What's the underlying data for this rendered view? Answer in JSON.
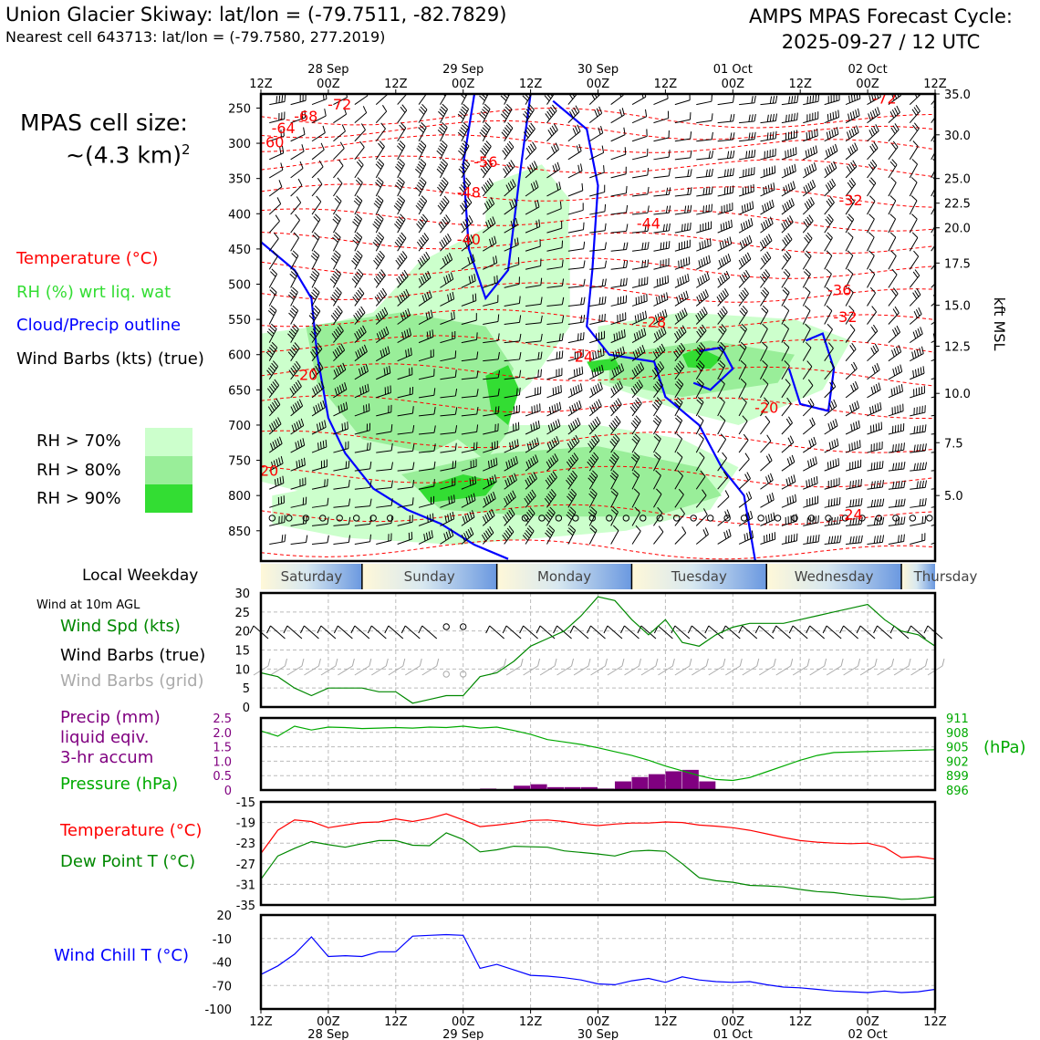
{
  "header": {
    "title_left": "Union Glacier Skiway: lat/lon = (-79.7511, -82.7829)",
    "subtitle_left": "Nearest cell 643713: lat/lon = (-79.7580, 277.2019)",
    "title_right_1": "AMPS MPAS Forecast Cycle:",
    "title_right_2": "2025-09-27 / 12 UTC"
  },
  "time_axis": {
    "ticks": [
      "12Z",
      "00Z",
      "12Z",
      "00Z",
      "12Z",
      "00Z",
      "12Z",
      "00Z",
      "12Z",
      "00Z",
      "12Z"
    ],
    "dates": [
      {
        "label": "28 Sep",
        "tick_index": 1
      },
      {
        "label": "29 Sep",
        "tick_index": 3
      },
      {
        "label": "30 Sep",
        "tick_index": 5
      },
      {
        "label": "01 Oct",
        "tick_index": 7
      },
      {
        "label": "02 Oct",
        "tick_index": 9
      }
    ],
    "hours_span": 120
  },
  "cross_section": {
    "cell_label_1": "MPAS cell size:",
    "cell_label_2": "~(4.3 km)",
    "cell_label_sup": "2",
    "legend": [
      {
        "label": "Temperature (°C)",
        "color": "#ff0000"
      },
      {
        "label": "RH (%) wrt liq. wat",
        "color": "#33dd33"
      },
      {
        "label": "Cloud/Precip outline",
        "color": "#0000ff"
      },
      {
        "label": "Wind Barbs (kts) (true)",
        "color": "#000000"
      }
    ],
    "rh_legend": [
      {
        "label": "RH > 70%",
        "color": "#ccffcc"
      },
      {
        "label": "RH > 80%",
        "color": "#99ee99"
      },
      {
        "label": "RH > 90%",
        "color": "#33dd33"
      }
    ],
    "pressure_ticks": [
      250,
      300,
      350,
      400,
      450,
      500,
      550,
      600,
      650,
      700,
      750,
      800,
      850
    ],
    "pressure_range": [
      230,
      893
    ],
    "kft_ticks": [
      "35.0",
      "30.0",
      "25.0",
      "22.5",
      "20.0",
      "17.5",
      "15.0",
      "12.5",
      "10.0",
      "7.5",
      "5.0"
    ],
    "kft_label": "kft MSL",
    "temp_labels": [
      {
        "text": "-72",
        "hour": 14,
        "p": 246
      },
      {
        "text": "-68",
        "hour": 8,
        "p": 263
      },
      {
        "text": "-64",
        "hour": 4,
        "p": 280
      },
      {
        "text": "-60",
        "hour": 2,
        "p": 300
      },
      {
        "text": "-56",
        "hour": 40,
        "p": 328
      },
      {
        "text": "-48",
        "hour": 37,
        "p": 371
      },
      {
        "text": "-40",
        "hour": 37,
        "p": 438
      },
      {
        "text": "-44",
        "hour": 69,
        "p": 415
      },
      {
        "text": "-28",
        "hour": 70,
        "p": 555
      },
      {
        "text": "-24",
        "hour": 57,
        "p": 604
      },
      {
        "text": "-20",
        "hour": 8,
        "p": 630
      },
      {
        "text": "-20",
        "hour": 1,
        "p": 766
      },
      {
        "text": "-20",
        "hour": 90,
        "p": 677
      },
      {
        "text": "-24",
        "hour": 105,
        "p": 828
      },
      {
        "text": "-32",
        "hour": 105,
        "p": 382
      },
      {
        "text": "-36",
        "hour": 103,
        "p": 510
      },
      {
        "text": "-32",
        "hour": 104,
        "p": 548
      },
      {
        "text": "-72",
        "hour": 111,
        "p": 238
      }
    ]
  },
  "weekday": {
    "label": "Local Weekday",
    "days": [
      "Saturday",
      "Sunday",
      "Monday",
      "Tuesday",
      "Wednesday",
      "Thursday"
    ]
  },
  "wind_panel": {
    "title_small": "Wind at 10m AGL",
    "label_speed": "Wind Spd (kts)",
    "label_barbs_true": "Wind Barbs (true)",
    "label_barbs_grid": "Wind Barbs (grid)",
    "yticks": [
      0,
      5,
      10,
      15,
      20,
      25,
      30
    ]
  },
  "precip_panel": {
    "label_1": "Precip (mm)",
    "label_2": "liquid eqiv.",
    "label_3": "3-hr accum",
    "label_4": "Pressure (hPa)",
    "unit_right": "(hPa)",
    "yticks_left": [
      "0",
      "0.5",
      "1.0",
      "1.5",
      "2.0",
      "2.5"
    ],
    "yticks_right": [
      896,
      899,
      902,
      905,
      908,
      911
    ]
  },
  "temp_panel": {
    "label_temp": "Temperature (°C)",
    "label_dew": "Dew Point T (°C)",
    "yticks": [
      -35,
      -31,
      -27,
      -23,
      -19,
      -15
    ]
  },
  "chill_panel": {
    "label": "Wind Chill T (°C)",
    "yticks": [
      -100,
      -70,
      -40,
      -10,
      20
    ]
  },
  "chart_data": {
    "type": "line",
    "x_hours": [
      0,
      3,
      6,
      9,
      12,
      15,
      18,
      21,
      24,
      27,
      30,
      33,
      36,
      39,
      42,
      45,
      48,
      51,
      54,
      57,
      60,
      63,
      66,
      69,
      72,
      75,
      78,
      81,
      84,
      87,
      90,
      93,
      96,
      99,
      102,
      105,
      108,
      111,
      114,
      117,
      120
    ],
    "wind_speed_kts": [
      9,
      8,
      5,
      3,
      5,
      5,
      5,
      4,
      4,
      1,
      2,
      3,
      3,
      8,
      9,
      12,
      16,
      18,
      20,
      24,
      29,
      28,
      23,
      19,
      23,
      17,
      16,
      19,
      21,
      22,
      22,
      22,
      23,
      24,
      25,
      26,
      27,
      23,
      20,
      19,
      16
    ],
    "pressure_hpa": [
      908.3,
      907.2,
      909.3,
      908.5,
      909.1,
      909.0,
      908.8,
      908.9,
      909.0,
      908.9,
      909.1,
      909.0,
      909.3,
      908.9,
      909.1,
      908.4,
      907.6,
      906.5,
      906.0,
      905.5,
      904.8,
      904.0,
      903.2,
      902.2,
      901.0,
      900.0,
      899.0,
      898.2,
      898.0,
      898.6,
      899.8,
      901.0,
      902.2,
      903.2,
      903.8,
      903.9,
      904.0,
      904.1,
      904.2,
      904.3,
      904.4
    ],
    "precip_mm": [
      0,
      0,
      0,
      0,
      0,
      0,
      0,
      0,
      0,
      0,
      0,
      0,
      0,
      0.05,
      0,
      0.15,
      0.2,
      0.1,
      0.1,
      0.1,
      0.05,
      0.3,
      0.45,
      0.55,
      0.65,
      0.7,
      0.3,
      0,
      0,
      0,
      0,
      0,
      0,
      0,
      0,
      0,
      0,
      0,
      0,
      0,
      0
    ],
    "temperature_c": [
      -25,
      -20.5,
      -18.5,
      -18.8,
      -20.0,
      -19.5,
      -19.0,
      -18.9,
      -18.3,
      -18.8,
      -18.2,
      -17.3,
      -18.5,
      -19.8,
      -19.5,
      -19.1,
      -18.6,
      -18.5,
      -18.8,
      -19.3,
      -19.6,
      -19.3,
      -19.1,
      -19.1,
      -18.9,
      -19.0,
      -19.5,
      -19.7,
      -20.0,
      -20.5,
      -21.2,
      -21.9,
      -22.5,
      -22.8,
      -23.0,
      -23.1,
      -23.0,
      -23.8,
      -25.8,
      -25.6,
      -26.1
    ],
    "dewpoint_c": [
      -30,
      -25.5,
      -24.0,
      -22.7,
      -23.3,
      -23.8,
      -23.1,
      -22.5,
      -22.5,
      -23.4,
      -23.5,
      -21.0,
      -22.3,
      -24.7,
      -24.3,
      -23.6,
      -23.7,
      -23.8,
      -24.5,
      -24.8,
      -25.1,
      -25.5,
      -24.6,
      -24.4,
      -24.6,
      -27.0,
      -29.7,
      -30.3,
      -30.6,
      -31.2,
      -31.3,
      -31.5,
      -32.0,
      -32.4,
      -32.6,
      -33.0,
      -33.3,
      -33.5,
      -33.9,
      -33.8,
      -33.4
    ],
    "wind_chill_c": [
      -56,
      -45,
      -30,
      -8,
      -33,
      -32,
      -33,
      -27,
      -27,
      -7,
      -6,
      -5,
      -6,
      -48,
      -43,
      -50,
      -57,
      -58,
      -60,
      -63,
      -68,
      -69,
      -64,
      -61,
      -66,
      -59,
      -63,
      -65,
      -66,
      -65,
      -69,
      -72,
      -73,
      -75,
      -77,
      -78,
      -79,
      -77,
      -79,
      -78,
      -75
    ],
    "wind_ylim": [
      0,
      30
    ],
    "precip_ylim": [
      0,
      2.5
    ],
    "pressure_ylim": [
      896,
      911
    ],
    "temp_ylim": [
      -35,
      -15
    ],
    "chill_ylim": [
      -100,
      20
    ]
  }
}
